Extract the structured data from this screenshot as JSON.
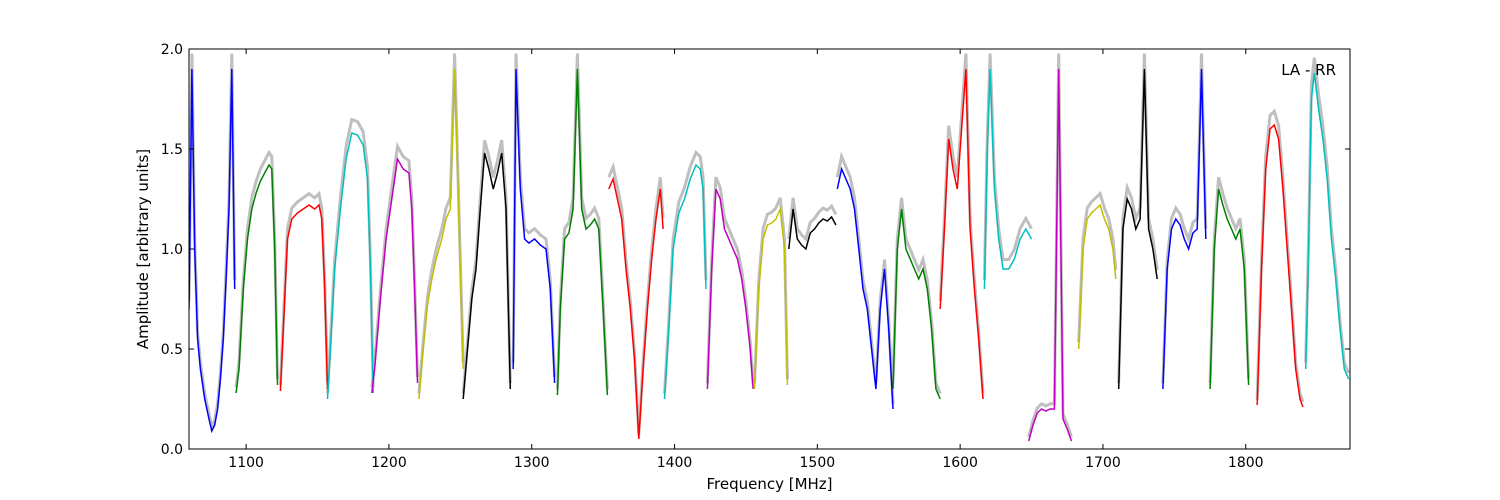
{
  "chart_data": {
    "type": "line",
    "title": "",
    "xlabel": "Frequency [MHz]",
    "ylabel": "Amplitude [arbitrary units]",
    "annotation": "LA - RR",
    "xlim": [
      1060,
      1873
    ],
    "ylim": [
      0.0,
      2.0
    ],
    "x_ticks": [
      1100,
      1200,
      1300,
      1400,
      1500,
      1600,
      1700,
      1800
    ],
    "x_tick_labels": [
      "1100",
      "1200",
      "1300",
      "1400",
      "1500",
      "1600",
      "1700",
      "1800"
    ],
    "y_ticks": [
      0.0,
      0.5,
      1.0,
      1.5,
      2.0
    ],
    "y_tick_labels": [
      "0.0",
      "0.5",
      "1.0",
      "1.5",
      "2.0"
    ],
    "grid": false,
    "legend": "none",
    "background_series_color": "#bfbfbf",
    "series": [
      {
        "color": "#0000ff",
        "x": [
          1060,
          1062,
          1064,
          1066,
          1068,
          1071,
          1074,
          1076,
          1078,
          1080,
          1082,
          1084,
          1086,
          1088,
          1090,
          1092
        ],
        "y": [
          0.7,
          1.9,
          1.0,
          0.55,
          0.4,
          0.25,
          0.15,
          0.09,
          0.12,
          0.2,
          0.35,
          0.55,
          0.85,
          1.2,
          1.9,
          0.8
        ]
      },
      {
        "color": "#008000",
        "x": [
          1093,
          1095,
          1098,
          1101,
          1104,
          1107,
          1110,
          1113,
          1116,
          1118,
          1120,
          1122
        ],
        "y": [
          0.28,
          0.4,
          0.8,
          1.05,
          1.2,
          1.28,
          1.34,
          1.38,
          1.42,
          1.4,
          1.0,
          0.32
        ]
      },
      {
        "color": "#ff0000",
        "x": [
          1124,
          1126,
          1129,
          1132,
          1136,
          1140,
          1144,
          1148,
          1151,
          1153,
          1155,
          1157
        ],
        "y": [
          0.29,
          0.6,
          1.05,
          1.15,
          1.18,
          1.2,
          1.22,
          1.2,
          1.22,
          1.15,
          0.8,
          0.3
        ]
      },
      {
        "color": "#00bfbf",
        "x": [
          1157,
          1159,
          1162,
          1166,
          1170,
          1174,
          1178,
          1182,
          1185,
          1187,
          1189
        ],
        "y": [
          0.25,
          0.5,
          0.9,
          1.2,
          1.45,
          1.58,
          1.57,
          1.52,
          1.35,
          0.9,
          0.28
        ]
      },
      {
        "color": "#bf00bf",
        "x": [
          1188,
          1190,
          1194,
          1198,
          1202,
          1206,
          1210,
          1214,
          1216,
          1218,
          1220
        ],
        "y": [
          0.28,
          0.4,
          0.75,
          1.05,
          1.25,
          1.45,
          1.4,
          1.38,
          1.2,
          0.8,
          0.33
        ]
      },
      {
        "color": "#bfbf00",
        "x": [
          1221,
          1224,
          1227,
          1230,
          1233,
          1237,
          1240,
          1243,
          1246,
          1248,
          1250,
          1252
        ],
        "y": [
          0.25,
          0.5,
          0.72,
          0.85,
          0.95,
          1.05,
          1.15,
          1.2,
          1.9,
          1.4,
          0.9,
          0.4
        ]
      },
      {
        "color": "#000000",
        "x": [
          1252,
          1255,
          1258,
          1261,
          1264,
          1267,
          1270,
          1273,
          1276,
          1279,
          1282,
          1285
        ],
        "y": [
          0.25,
          0.5,
          0.75,
          0.9,
          1.2,
          1.48,
          1.4,
          1.3,
          1.38,
          1.48,
          1.2,
          0.3
        ]
      },
      {
        "color": "#0000ff",
        "x": [
          1287,
          1289,
          1292,
          1295,
          1298,
          1302,
          1306,
          1310,
          1313,
          1316
        ],
        "y": [
          0.4,
          1.9,
          1.3,
          1.05,
          1.03,
          1.05,
          1.02,
          1.0,
          0.8,
          0.33
        ]
      },
      {
        "color": "#008000",
        "x": [
          1318,
          1320,
          1323,
          1326,
          1329,
          1332,
          1335,
          1338,
          1341,
          1344,
          1347,
          1350,
          1353
        ],
        "y": [
          0.27,
          0.7,
          1.05,
          1.08,
          1.2,
          1.9,
          1.2,
          1.1,
          1.12,
          1.15,
          1.1,
          0.7,
          0.27
        ]
      },
      {
        "color": "#ff0000",
        "x": [
          1354,
          1357,
          1360,
          1363,
          1366,
          1369,
          1372,
          1375,
          1378,
          1381,
          1384,
          1387,
          1390,
          1392
        ],
        "y": [
          1.3,
          1.35,
          1.25,
          1.15,
          0.9,
          0.7,
          0.45,
          0.05,
          0.4,
          0.7,
          0.95,
          1.15,
          1.3,
          1.1
        ]
      },
      {
        "color": "#00bfbf",
        "x": [
          1393,
          1396,
          1399,
          1403,
          1407,
          1411,
          1415,
          1418,
          1420,
          1422
        ],
        "y": [
          0.25,
          0.6,
          1.0,
          1.18,
          1.25,
          1.35,
          1.42,
          1.4,
          1.3,
          0.8
        ]
      },
      {
        "color": "#bf00bf",
        "x": [
          1423,
          1426,
          1429,
          1432,
          1435,
          1438,
          1441,
          1444,
          1447,
          1450,
          1453,
          1455
        ],
        "y": [
          0.3,
          0.9,
          1.3,
          1.25,
          1.1,
          1.05,
          1.0,
          0.95,
          0.85,
          0.7,
          0.5,
          0.3
        ]
      },
      {
        "color": "#bfbf00",
        "x": [
          1456,
          1459,
          1462,
          1465,
          1468,
          1471,
          1474,
          1477,
          1479
        ],
        "y": [
          0.3,
          0.8,
          1.05,
          1.12,
          1.13,
          1.15,
          1.2,
          1.0,
          0.32
        ]
      },
      {
        "color": "#000000",
        "x": [
          1480,
          1483,
          1486,
          1489,
          1492,
          1495,
          1498,
          1501,
          1504,
          1507,
          1510,
          1513
        ],
        "y": [
          1.0,
          1.2,
          1.05,
          1.02,
          1.0,
          1.08,
          1.1,
          1.13,
          1.15,
          1.14,
          1.16,
          1.12
        ]
      },
      {
        "color": "#0000ff",
        "x": [
          1514,
          1517,
          1520,
          1523,
          1526,
          1529,
          1532,
          1535,
          1538,
          1541,
          1544,
          1547,
          1550,
          1553
        ],
        "y": [
          1.3,
          1.4,
          1.35,
          1.3,
          1.2,
          1.0,
          0.8,
          0.7,
          0.5,
          0.3,
          0.7,
          0.9,
          0.6,
          0.2
        ]
      },
      {
        "color": "#008000",
        "x": [
          1553,
          1556,
          1559,
          1562,
          1565,
          1568,
          1571,
          1574,
          1577,
          1580,
          1583,
          1586
        ],
        "y": [
          0.3,
          1.0,
          1.2,
          1.0,
          0.95,
          0.9,
          0.85,
          0.9,
          0.8,
          0.6,
          0.3,
          0.25
        ]
      },
      {
        "color": "#ff0000",
        "x": [
          1586,
          1589,
          1592,
          1595,
          1598,
          1601,
          1604,
          1607,
          1610,
          1613,
          1616
        ],
        "y": [
          0.7,
          1.1,
          1.55,
          1.4,
          1.3,
          1.6,
          1.9,
          1.1,
          0.8,
          0.55,
          0.25
        ]
      },
      {
        "color": "#00bfbf",
        "x": [
          1617,
          1619,
          1621,
          1624,
          1627,
          1630,
          1634,
          1638,
          1642,
          1646,
          1650
        ],
        "y": [
          0.8,
          1.5,
          1.9,
          1.3,
          1.05,
          0.9,
          0.9,
          0.95,
          1.05,
          1.1,
          1.05
        ]
      },
      {
        "color": "#bf00bf",
        "x": [
          1648,
          1651,
          1654,
          1657,
          1660,
          1663,
          1666,
          1669,
          1672,
          1675,
          1678
        ],
        "y": [
          0.04,
          0.12,
          0.18,
          0.2,
          0.19,
          0.2,
          0.2,
          1.9,
          0.15,
          0.1,
          0.04
        ]
      },
      {
        "color": "#bfbf00",
        "x": [
          1683,
          1686,
          1689,
          1692,
          1695,
          1698,
          1701,
          1704,
          1707,
          1709
        ],
        "y": [
          0.5,
          1.0,
          1.15,
          1.18,
          1.2,
          1.22,
          1.15,
          1.1,
          1.0,
          0.85
        ]
      },
      {
        "color": "#000000",
        "x": [
          1711,
          1714,
          1717,
          1720,
          1723,
          1726,
          1729,
          1732,
          1735,
          1738
        ],
        "y": [
          0.3,
          1.1,
          1.25,
          1.2,
          1.1,
          1.15,
          1.9,
          1.1,
          1.0,
          0.85
        ]
      },
      {
        "color": "#0000ff",
        "x": [
          1742,
          1745,
          1748,
          1751,
          1754,
          1757,
          1760,
          1763,
          1766,
          1769,
          1772
        ],
        "y": [
          0.3,
          0.9,
          1.1,
          1.15,
          1.12,
          1.05,
          1.0,
          1.08,
          1.1,
          1.9,
          1.05
        ]
      },
      {
        "color": "#008000",
        "x": [
          1775,
          1778,
          1781,
          1784,
          1787,
          1790,
          1793,
          1796,
          1799,
          1802
        ],
        "y": [
          0.3,
          1.0,
          1.3,
          1.22,
          1.15,
          1.1,
          1.05,
          1.1,
          0.9,
          0.32
        ]
      },
      {
        "color": "#ff0000",
        "x": [
          1808,
          1811,
          1814,
          1817,
          1820,
          1823,
          1826,
          1829,
          1832,
          1835,
          1838,
          1840
        ],
        "y": [
          0.22,
          0.9,
          1.4,
          1.6,
          1.62,
          1.55,
          1.3,
          1.0,
          0.7,
          0.4,
          0.25,
          0.21
        ]
      },
      {
        "color": "#00bfbf",
        "x": [
          1842,
          1844,
          1846,
          1848,
          1851,
          1854,
          1857,
          1860,
          1863,
          1866,
          1869,
          1872
        ],
        "y": [
          0.4,
          1.0,
          1.75,
          1.88,
          1.7,
          1.55,
          1.35,
          1.05,
          0.85,
          0.6,
          0.4,
          0.35
        ]
      }
    ]
  }
}
